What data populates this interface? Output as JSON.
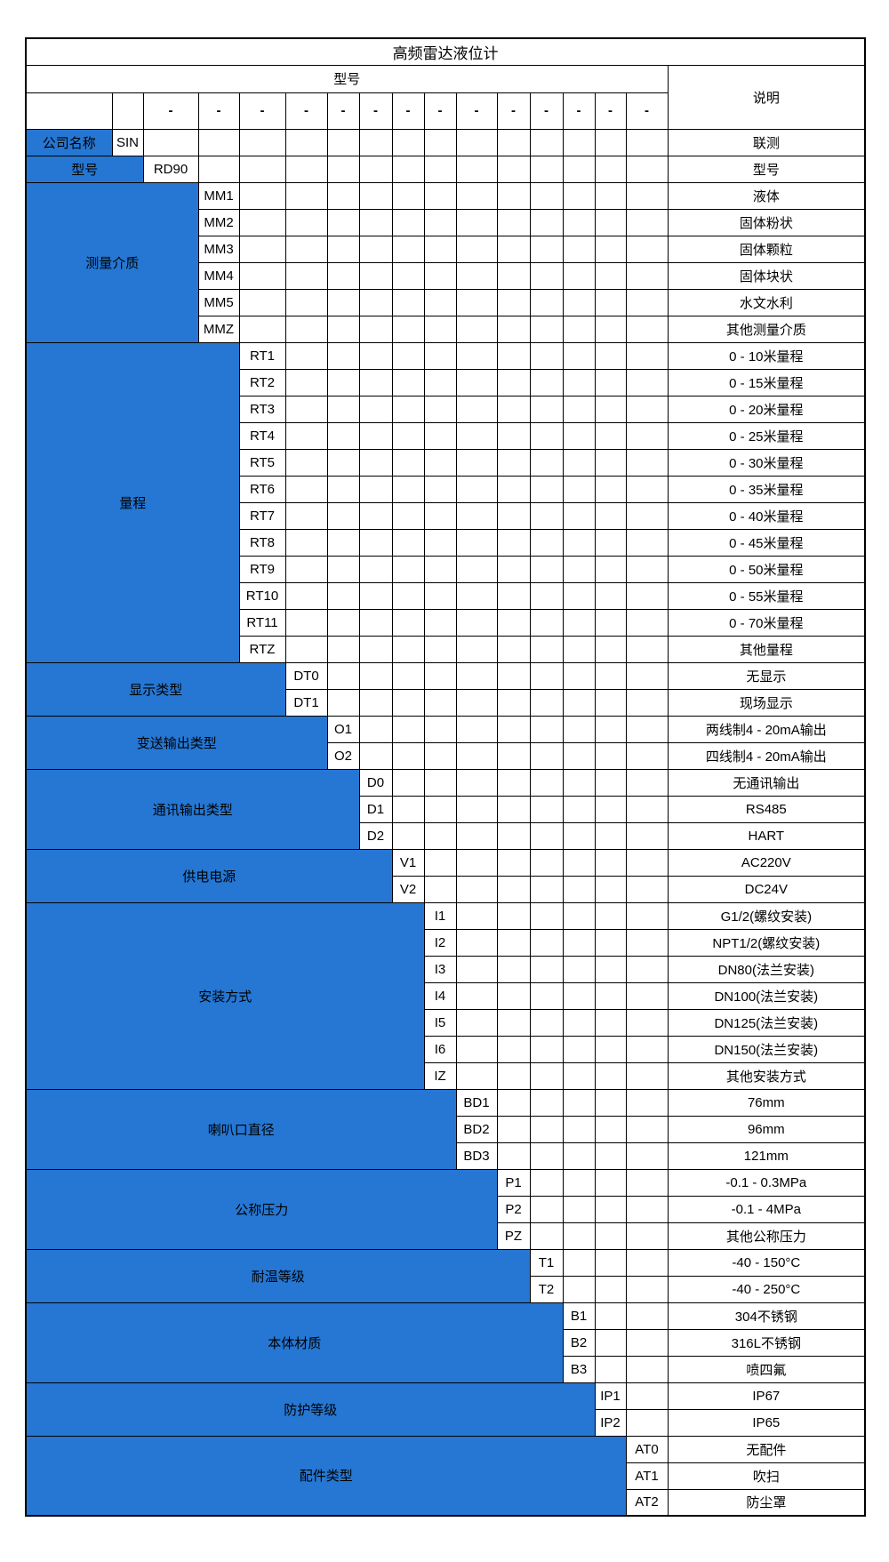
{
  "title": "高频雷达液位计",
  "header": {
    "model_label": "型号",
    "description_label": "说明",
    "dash": "-"
  },
  "colors": {
    "accent_blue": "#2577d3",
    "border": "#000000",
    "text_on_blue": "#ffffff",
    "text": "#000000",
    "background": "#ffffff"
  },
  "sections": [
    {
      "key": "company-name",
      "label": "公司名称",
      "rows": [
        {
          "code": "SIN",
          "desc": "联测"
        }
      ]
    },
    {
      "key": "model",
      "label": "型号",
      "rows": [
        {
          "code": "RD90",
          "desc": "型号"
        }
      ]
    },
    {
      "key": "measuring-medium",
      "label": "测量介质",
      "rows": [
        {
          "code": "MM1",
          "desc": "液体"
        },
        {
          "code": "MM2",
          "desc": "固体粉状"
        },
        {
          "code": "MM3",
          "desc": "固体颗粒"
        },
        {
          "code": "MM4",
          "desc": "固体块状"
        },
        {
          "code": "MM5",
          "desc": "水文水利"
        },
        {
          "code": "MMZ",
          "desc": "其他测量介质"
        }
      ]
    },
    {
      "key": "range",
      "label": "量程",
      "rows": [
        {
          "code": "RT1",
          "desc": "0 - 10米量程"
        },
        {
          "code": "RT2",
          "desc": "0 - 15米量程"
        },
        {
          "code": "RT3",
          "desc": "0 - 20米量程"
        },
        {
          "code": "RT4",
          "desc": "0 - 25米量程"
        },
        {
          "code": "RT5",
          "desc": "0 - 30米量程"
        },
        {
          "code": "RT6",
          "desc": "0 - 35米量程"
        },
        {
          "code": "RT7",
          "desc": "0 - 40米量程"
        },
        {
          "code": "RT8",
          "desc": "0 - 45米量程"
        },
        {
          "code": "RT9",
          "desc": "0 - 50米量程"
        },
        {
          "code": "RT10",
          "desc": "0 - 55米量程"
        },
        {
          "code": "RT11",
          "desc": "0 - 70米量程"
        },
        {
          "code": "RTZ",
          "desc": "其他量程"
        }
      ]
    },
    {
      "key": "display-type",
      "label": "显示类型",
      "rows": [
        {
          "code": "DT0",
          "desc": "无显示"
        },
        {
          "code": "DT1",
          "desc": "现场显示"
        }
      ]
    },
    {
      "key": "transmit-output-type",
      "label": "变送输出类型",
      "rows": [
        {
          "code": "O1",
          "desc": "两线制4 - 20mA输出"
        },
        {
          "code": "O2",
          "desc": "四线制4 - 20mA输出"
        }
      ]
    },
    {
      "key": "comm-output-type",
      "label": "通讯输出类型",
      "rows": [
        {
          "code": "D0",
          "desc": "无通讯输出"
        },
        {
          "code": "D1",
          "desc": "RS485"
        },
        {
          "code": "D2",
          "desc": "HART"
        }
      ]
    },
    {
      "key": "power-supply",
      "label": "供电电源",
      "rows": [
        {
          "code": "V1",
          "desc": "AC220V"
        },
        {
          "code": "V2",
          "desc": "DC24V"
        }
      ]
    },
    {
      "key": "installation-method",
      "label": "安装方式",
      "rows": [
        {
          "code": "I1",
          "desc": "G1/2(螺纹安装)"
        },
        {
          "code": "I2",
          "desc": "NPT1/2(螺纹安装)"
        },
        {
          "code": "I3",
          "desc": "DN80(法兰安装)"
        },
        {
          "code": "I4",
          "desc": "DN100(法兰安装)"
        },
        {
          "code": "I5",
          "desc": "DN125(法兰安装)"
        },
        {
          "code": "I6",
          "desc": "DN150(法兰安装)"
        },
        {
          "code": "IZ",
          "desc": "其他安装方式"
        }
      ]
    },
    {
      "key": "horn-diameter",
      "label": "喇叭口直径",
      "rows": [
        {
          "code": "BD1",
          "desc": "76mm"
        },
        {
          "code": "BD2",
          "desc": "96mm"
        },
        {
          "code": "BD3",
          "desc": "121mm"
        }
      ]
    },
    {
      "key": "nominal-pressure",
      "label": "公称压力",
      "rows": [
        {
          "code": "P1",
          "desc": "-0.1 - 0.3MPa"
        },
        {
          "code": "P2",
          "desc": "-0.1 - 4MPa"
        },
        {
          "code": "PZ",
          "desc": "其他公称压力"
        }
      ]
    },
    {
      "key": "temperature-rating",
      "label": "耐温等级",
      "rows": [
        {
          "code": "T1",
          "desc": "-40 - 150°C"
        },
        {
          "code": "T2",
          "desc": "-40 - 250°C"
        }
      ]
    },
    {
      "key": "body-material",
      "label": "本体材质",
      "rows": [
        {
          "code": "B1",
          "desc": "304不锈钢"
        },
        {
          "code": "B2",
          "desc": "316L不锈钢"
        },
        {
          "code": "B3",
          "desc": "喷四氟"
        }
      ]
    },
    {
      "key": "protection-rating",
      "label": "防护等级",
      "rows": [
        {
          "code": "IP1",
          "desc": "IP67"
        },
        {
          "code": "IP2",
          "desc": "IP65"
        }
      ]
    },
    {
      "key": "accessory-type",
      "label": "配件类型",
      "rows": [
        {
          "code": "AT0",
          "desc": "无配件"
        },
        {
          "code": "AT1",
          "desc": "吹扫"
        },
        {
          "code": "AT2",
          "desc": "防尘罩"
        }
      ]
    }
  ]
}
